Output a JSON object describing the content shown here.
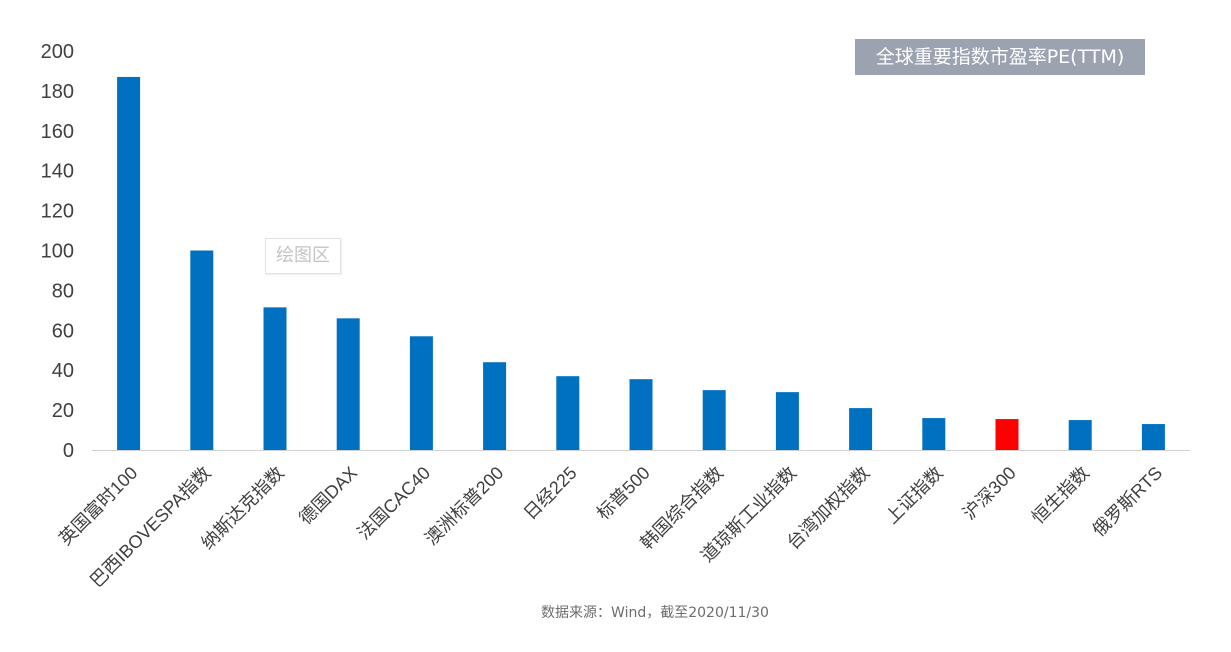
{
  "legend": {
    "label": "全球重要指数市盈率PE(TTM)"
  },
  "watermark": "绘图区",
  "source": "数据来源：Wind，截至2020/11/30",
  "colors": {
    "bar": "#0070c0",
    "highlight": "#ff0000",
    "axis": "#d0d0d0",
    "tick_text": "#404040"
  },
  "chart_data": {
    "type": "bar",
    "title": "全球重要指数市盈率PE(TTM)",
    "xlabel": "",
    "ylabel": "",
    "ylim": [
      0,
      200
    ],
    "yticks": [
      0,
      20,
      40,
      60,
      80,
      100,
      120,
      140,
      160,
      180,
      200
    ],
    "grid": false,
    "legend_position": "top-right",
    "categories": [
      "英国富时100",
      "巴西IBOVESPA指数",
      "纳斯达克指数",
      "德国DAX",
      "法国CAC40",
      "澳洲标普200",
      "日经225",
      "标普500",
      "韩国综合指数",
      "道琼斯工业指数",
      "台湾加权指数",
      "上证指数",
      "沪深300",
      "恒生指数",
      "俄罗斯RTS"
    ],
    "values": [
      187,
      100,
      71.5,
      66,
      57,
      44,
      37,
      35.5,
      30,
      29,
      21,
      16,
      15.5,
      15,
      13
    ],
    "highlight_category": "沪深300"
  }
}
